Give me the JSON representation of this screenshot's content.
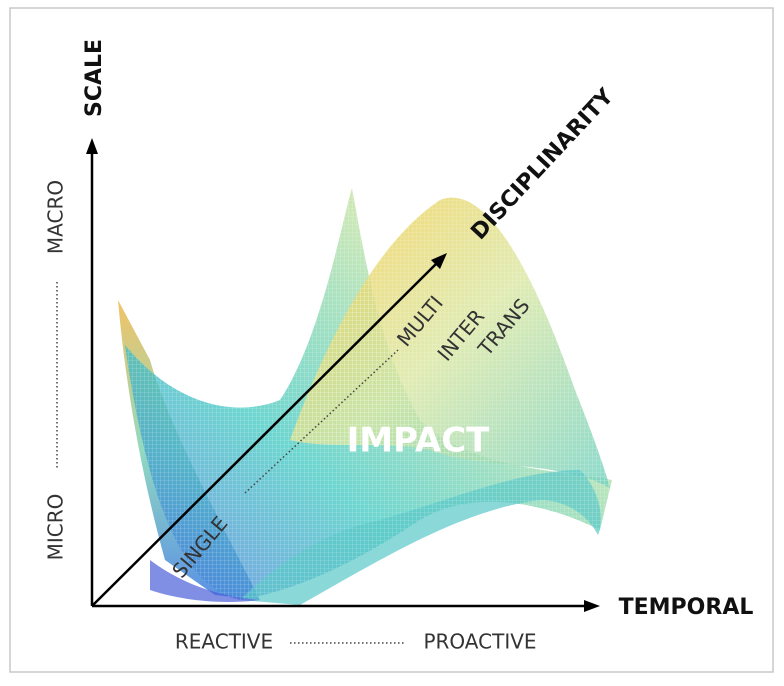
{
  "vertical_axis": {
    "label": "SCALE",
    "high": "MACRO",
    "low": "MICRO"
  },
  "horizontal_axis": {
    "label": "TEMPORAL",
    "low": "REACTIVE",
    "high": "PROACTIVE"
  },
  "diagonal_axis": {
    "label": "DISCIPLINARITY",
    "levels": [
      "SINGLE",
      "MULTI",
      "INTER",
      "TRANS"
    ]
  },
  "center_label": "IMPACT"
}
